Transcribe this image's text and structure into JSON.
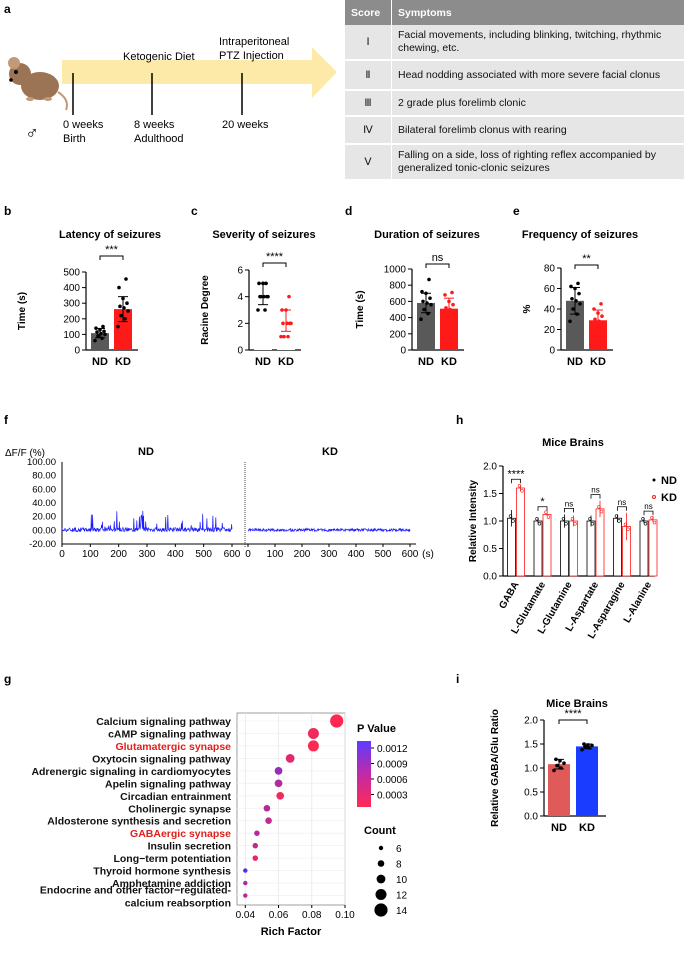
{
  "labels": {
    "a": "a",
    "b": "b",
    "c": "c",
    "d": "d",
    "e": "e",
    "f": "f",
    "g": "g",
    "h": "h",
    "i": "i"
  },
  "timeline": {
    "male_symbol": "♂",
    "events": [
      {
        "line1": "0 weeks",
        "line2": "Birth"
      },
      {
        "line1": "Ketogenic Diet",
        "line2": ""
      },
      {
        "line1": "8 weeks",
        "line2": "Adulthood"
      },
      {
        "line1": "Intraperitoneal",
        "line2": "PTZ Injection"
      },
      {
        "line1": "20 weeks",
        "line2": ""
      }
    ]
  },
  "score_table": {
    "headers": [
      "Score",
      "Symptoms"
    ],
    "rows": [
      {
        "score": "Ⅰ",
        "symptom": "Facial movements, including blinking, twitching, rhythmic chewing, etc."
      },
      {
        "score": "Ⅱ",
        "symptom": "Head nodding associated with more severe facial clonus"
      },
      {
        "score": "Ⅲ",
        "symptom": "2 grade plus forelimb clonic"
      },
      {
        "score": "Ⅳ",
        "symptom": "Bilateral forelimb clonus with rearing"
      },
      {
        "score": "Ⅴ",
        "symptom": "Falling on a side, loss of righting reflex accompanied by generalized tonic-clonic seizures"
      }
    ]
  },
  "colors": {
    "nd": "#595959",
    "kd": "#ff1a1a",
    "trace": "#1a1aff",
    "i_nd": "#e05a5a",
    "i_kd": "#1a3cff"
  },
  "chart_data": [
    {
      "id": "b",
      "type": "bar",
      "title": "Latency of seizures",
      "ylabel": "Time (s)",
      "categories": [
        "ND",
        "KD"
      ],
      "values": [
        108,
        262
      ],
      "errors": [
        30,
        80
      ],
      "ylim": [
        0,
        500
      ],
      "yticks": [
        "0",
        "100",
        "200",
        "300",
        "400",
        "500"
      ],
      "significance": "***",
      "points": [
        [
          60,
          75,
          90,
          100,
          105,
          115,
          120,
          130,
          140,
          150
        ],
        [
          150,
          200,
          220,
          250,
          270,
          280,
          300,
          330,
          400,
          455
        ]
      ]
    },
    {
      "id": "c",
      "type": "bar",
      "title": "Severity of seizures",
      "ylabel": "Racine Degree",
      "categories": [
        "ND",
        "KD"
      ],
      "values": [
        4.2,
        2.2
      ],
      "errors": [
        0.8,
        0.8
      ],
      "ylim": [
        0,
        6
      ],
      "yticks": [
        "0",
        "2",
        "4",
        "6"
      ],
      "significance": "****",
      "points": [
        [
          3,
          3,
          4,
          4,
          4,
          4,
          4,
          5,
          5,
          5
        ],
        [
          1,
          1,
          1,
          2,
          2,
          2,
          2,
          3,
          3,
          4
        ]
      ]
    },
    {
      "id": "d",
      "type": "bar",
      "title": "Duration of seizures",
      "ylabel": "Time (s)",
      "categories": [
        "ND",
        "KD"
      ],
      "values": [
        580,
        510
      ],
      "errors": [
        120,
        130
      ],
      "ylim": [
        0,
        1000
      ],
      "yticks": [
        "0",
        "200",
        "400",
        "600",
        "800",
        "1000"
      ],
      "significance": "ns",
      "points": [
        [
          380,
          450,
          500,
          560,
          580,
          600,
          640,
          700,
          720,
          870
        ],
        [
          330,
          380,
          420,
          460,
          500,
          520,
          560,
          600,
          680,
          710
        ]
      ]
    },
    {
      "id": "e",
      "type": "bar",
      "title": "Frequency of seizures",
      "ylabel": "%",
      "categories": [
        "ND",
        "KD"
      ],
      "values": [
        48,
        29
      ],
      "errors": [
        13,
        10
      ],
      "ylim": [
        0,
        80
      ],
      "yticks": [
        "0",
        "20",
        "40",
        "60",
        "80"
      ],
      "significance": "**",
      "points": [
        [
          28,
          35,
          40,
          45,
          48,
          50,
          55,
          60,
          62,
          65
        ],
        [
          14,
          18,
          22,
          25,
          28,
          30,
          33,
          36,
          40,
          45
        ]
      ]
    },
    {
      "id": "f",
      "type": "line",
      "ylabel": "ΔF/F  (%)",
      "series_names": [
        "ND",
        "KD"
      ],
      "ylim": [
        -20,
        100
      ],
      "yticks": [
        "100.00",
        "80.00",
        "60.00",
        "40.00",
        "20.00",
        "00.00",
        "-20.00"
      ],
      "xticks": [
        "0",
        "100",
        "200",
        "300",
        "400",
        "500",
        "600"
      ],
      "xunit": "(s)",
      "xlim": [
        0,
        600
      ]
    },
    {
      "id": "g",
      "type": "scatter",
      "xlabel": "Rich Factor",
      "legend_title": "P Value",
      "count_title": "Count",
      "colorbar_ticks": [
        "0.0012",
        "0.0009",
        "0.0006",
        "0.0003"
      ],
      "count_ticks": [
        "6",
        "8",
        "10",
        "12",
        "14"
      ],
      "xticks": [
        "0.04",
        "0.06",
        "0.08",
        "0.10"
      ],
      "xlim": [
        0.035,
        0.1
      ],
      "terms": [
        {
          "name": "Calcium signaling pathway",
          "rich": 0.095,
          "count": 14,
          "p": 0.0001,
          "highlight": false
        },
        {
          "name": "cAMP signaling pathway",
          "rich": 0.081,
          "count": 12,
          "p": 0.0002,
          "highlight": false
        },
        {
          "name": "Glutamatergic synapse",
          "rich": 0.081,
          "count": 12,
          "p": 0.0001,
          "highlight": true
        },
        {
          "name": "Oxytocin signaling pathway",
          "rich": 0.067,
          "count": 10,
          "p": 0.0003,
          "highlight": false
        },
        {
          "name": "Adrenergic signaling in cardiomyocytes",
          "rich": 0.06,
          "count": 9,
          "p": 0.0008,
          "highlight": false
        },
        {
          "name": "Apelin signaling pathway",
          "rich": 0.06,
          "count": 9,
          "p": 0.0006,
          "highlight": false
        },
        {
          "name": "Circadian entrainment",
          "rich": 0.061,
          "count": 9,
          "p": 0.0002,
          "highlight": false
        },
        {
          "name": "Cholinergic synapse",
          "rich": 0.053,
          "count": 8,
          "p": 0.0006,
          "highlight": false
        },
        {
          "name": "Aldosterone synthesis and secretion",
          "rich": 0.054,
          "count": 8,
          "p": 0.0005,
          "highlight": false
        },
        {
          "name": "GABAergic synapse",
          "rich": 0.047,
          "count": 7,
          "p": 0.0006,
          "highlight": true
        },
        {
          "name": "Insulin secretion",
          "rich": 0.046,
          "count": 7,
          "p": 0.0005,
          "highlight": false
        },
        {
          "name": "Long−term potentiation",
          "rich": 0.046,
          "count": 7,
          "p": 0.0003,
          "highlight": false
        },
        {
          "name": "Thyroid hormone synthesis",
          "rich": 0.04,
          "count": 6,
          "p": 0.0013,
          "highlight": false
        },
        {
          "name": "Amphetamine addiction",
          "rich": 0.04,
          "count": 6,
          "p": 0.0007,
          "highlight": false
        },
        {
          "name": "Endocrine and other factor−regulated-",
          "name2": "calcium reabsorption",
          "rich": 0.04,
          "count": 6,
          "p": 0.0006,
          "highlight": false
        }
      ]
    },
    {
      "id": "h",
      "type": "bar",
      "title": "Mice Brains",
      "ylabel": "Relative Intensity",
      "series_names": [
        "ND",
        "KD"
      ],
      "ylim": [
        0,
        2.0
      ],
      "yticks": [
        "0.0",
        "0.5",
        "1.0",
        "1.5",
        "2.0"
      ],
      "categories": [
        "GABA",
        "L-Glutamate",
        "L-Glutamine",
        "L-Aspartate",
        "L-Asparagine",
        "L-Alanine"
      ],
      "nd_values": [
        1.05,
        1.0,
        1.0,
        1.0,
        1.05,
        1.0
      ],
      "kd_values": [
        1.6,
        1.12,
        1.0,
        1.22,
        0.9,
        1.02
      ],
      "nd_err": [
        0.15,
        0.05,
        0.12,
        0.1,
        0.07,
        0.05
      ],
      "kd_err": [
        0.05,
        0.03,
        0.1,
        0.15,
        0.25,
        0.05
      ],
      "significance": [
        "****",
        "*",
        "ns",
        "ns",
        "ns",
        "ns"
      ]
    },
    {
      "id": "i",
      "type": "bar",
      "title": "Mice Brains",
      "ylabel": "Relative GABA/Glu Ratio",
      "categories": [
        "ND",
        "KD"
      ],
      "values": [
        1.08,
        1.45
      ],
      "errors": [
        0.1,
        0.05
      ],
      "ylim": [
        0,
        2.0
      ],
      "yticks": [
        "0.0",
        "0.5",
        "1.0",
        "1.5",
        "2.0"
      ],
      "significance": "****",
      "points": [
        [
          0.95,
          1.0,
          1.05,
          1.1,
          1.15,
          1.18
        ],
        [
          1.38,
          1.42,
          1.45,
          1.47,
          1.48,
          1.5
        ]
      ]
    }
  ]
}
